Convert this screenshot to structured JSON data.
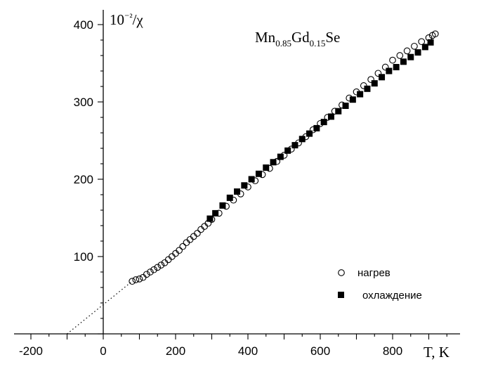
{
  "chart_data": {
    "type": "scatter",
    "title": {
      "parts": [
        {
          "text": "Mn",
          "sub": false
        },
        {
          "text": "0.85",
          "sub": true
        },
        {
          "text": "Gd",
          "sub": false
        },
        {
          "text": "0.15",
          "sub": true
        },
        {
          "text": "Se",
          "sub": false
        }
      ]
    },
    "xlabel": "T, K",
    "ylabel": "10⁻²/χ",
    "xlim": [
      -250,
      960
    ],
    "ylim": [
      0,
      420
    ],
    "x_ticks": [
      -200,
      0,
      200,
      400,
      600,
      800
    ],
    "y_ticks": [
      100,
      200,
      300,
      400
    ],
    "grid": false,
    "legend_position": "bottom-right",
    "series": [
      {
        "name": "нагрев",
        "marker": "open-circle",
        "color": "#000000",
        "points": [
          [
            80,
            68
          ],
          [
            90,
            70
          ],
          [
            100,
            71
          ],
          [
            110,
            73
          ],
          [
            120,
            77
          ],
          [
            130,
            80
          ],
          [
            140,
            83
          ],
          [
            150,
            86
          ],
          [
            160,
            89
          ],
          [
            170,
            92
          ],
          [
            180,
            96
          ],
          [
            190,
            100
          ],
          [
            200,
            104
          ],
          [
            210,
            108
          ],
          [
            220,
            113
          ],
          [
            230,
            118
          ],
          [
            240,
            122
          ],
          [
            250,
            126
          ],
          [
            260,
            130
          ],
          [
            270,
            135
          ],
          [
            280,
            139
          ],
          [
            290,
            143
          ],
          [
            300,
            148
          ],
          [
            320,
            156
          ],
          [
            340,
            165
          ],
          [
            360,
            173
          ],
          [
            380,
            181
          ],
          [
            400,
            190
          ],
          [
            420,
            198
          ],
          [
            440,
            206
          ],
          [
            460,
            214
          ],
          [
            480,
            223
          ],
          [
            500,
            231
          ],
          [
            520,
            239
          ],
          [
            540,
            247
          ],
          [
            560,
            255
          ],
          [
            580,
            264
          ],
          [
            600,
            272
          ],
          [
            620,
            280
          ],
          [
            640,
            288
          ],
          [
            660,
            296
          ],
          [
            680,
            305
          ],
          [
            700,
            313
          ],
          [
            720,
            321
          ],
          [
            740,
            329
          ],
          [
            760,
            337
          ],
          [
            780,
            345
          ],
          [
            800,
            354
          ],
          [
            820,
            360
          ],
          [
            840,
            366
          ],
          [
            860,
            372
          ],
          [
            880,
            378
          ],
          [
            900,
            383
          ],
          [
            910,
            386
          ],
          [
            918,
            388
          ]
        ]
      },
      {
        "name": "охлаждение",
        "marker": "filled-square",
        "color": "#000000",
        "points": [
          [
            295,
            149
          ],
          [
            310,
            156
          ],
          [
            330,
            166
          ],
          [
            350,
            176
          ],
          [
            370,
            184
          ],
          [
            390,
            192
          ],
          [
            410,
            200
          ],
          [
            430,
            207
          ],
          [
            450,
            215
          ],
          [
            470,
            222
          ],
          [
            490,
            229
          ],
          [
            510,
            237
          ],
          [
            530,
            244
          ],
          [
            550,
            252
          ],
          [
            570,
            259
          ],
          [
            590,
            266
          ],
          [
            610,
            274
          ],
          [
            630,
            281
          ],
          [
            650,
            288
          ],
          [
            670,
            295
          ],
          [
            690,
            303
          ],
          [
            710,
            310
          ],
          [
            730,
            317
          ],
          [
            750,
            324
          ],
          [
            770,
            332
          ],
          [
            790,
            340
          ],
          [
            810,
            345
          ],
          [
            830,
            352
          ],
          [
            850,
            358
          ],
          [
            870,
            364
          ],
          [
            890,
            371
          ],
          [
            905,
            377
          ]
        ]
      }
    ],
    "extrapolation_line": {
      "style": "dotted",
      "x": [
        -100,
        80
      ],
      "y": [
        0,
        68
      ]
    }
  }
}
